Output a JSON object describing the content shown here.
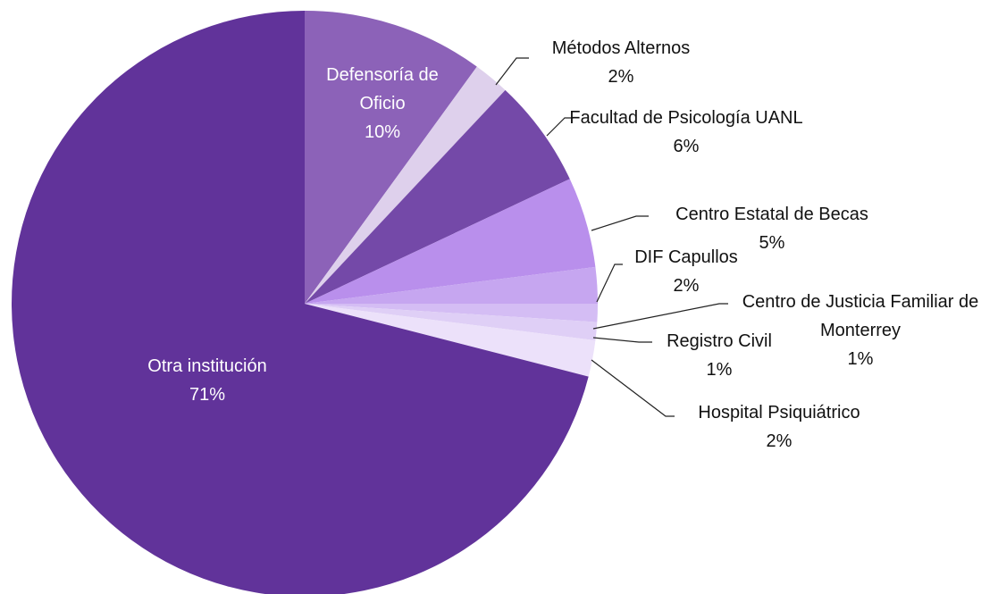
{
  "chart_data": {
    "type": "pie",
    "categories": [
      "Defensoría de Oficio",
      "Métodos Alternos",
      "Facultad de Psicología UANL",
      "Centro Estatal de Becas",
      "DIF Capullos",
      "Centro de Justicia Familiar de Monterrey",
      "Registro Civil",
      "Hospital Psiquiátrico",
      "Otra institución"
    ],
    "values": [
      10,
      2,
      6,
      5,
      2,
      1,
      1,
      2,
      71
    ],
    "value_labels": [
      "10%",
      "2%",
      "6%",
      "5%",
      "2%",
      "1%",
      "1%",
      "2%",
      "71%"
    ],
    "colors": [
      "#8c62b8",
      "#ded0ec",
      "#7449a8",
      "#b98fec",
      "#c6a6f0",
      "#d4bdf4",
      "#dfcff6",
      "#ece1fa",
      "#61339a"
    ]
  }
}
